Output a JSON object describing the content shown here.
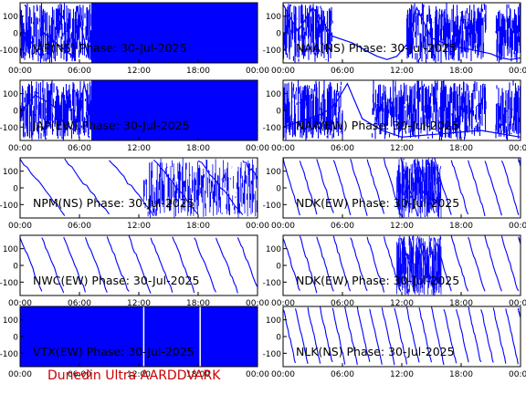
{
  "footer": "Dunedin Ultra AARDDVARK",
  "colors": {
    "trace": "#0000ff",
    "axis": "#000000",
    "footer": "#cc0000"
  },
  "chart_data": [
    {
      "type": "line",
      "title": "JAP(NS) Phase: 30-Jul-2025",
      "ylim": [
        -180,
        180
      ],
      "yticks": [
        100,
        0,
        -100
      ],
      "xticks": [
        "00:00",
        "06:00",
        "12:00",
        "18:00",
        "00:00"
      ],
      "xlim": [
        0,
        24
      ],
      "pattern": "dense",
      "x": [
        0,
        0.3,
        0.5,
        2.2,
        2.4,
        5.5,
        5.7,
        6.9,
        7.1,
        24
      ],
      "y": [
        160,
        -150,
        0,
        -150,
        0,
        -150,
        160,
        -150,
        0,
        0
      ]
    },
    {
      "type": "line",
      "title": "NAA(NS) Phase: 30-Jul-2025",
      "ylim": [
        -180,
        180
      ],
      "yticks": [
        100,
        0,
        -100
      ],
      "xticks": [
        "00:00",
        "06:00",
        "12:00",
        "18:00",
        "00:00"
      ],
      "xlim": [
        0,
        24
      ],
      "pattern": "dense-curve",
      "x": [
        0,
        1.5,
        3,
        5,
        7,
        8.5,
        9.5,
        10.5,
        11.5,
        12.5,
        13.5,
        15,
        17,
        19,
        21,
        22,
        23,
        24
      ],
      "y": [
        170,
        10,
        150,
        -20,
        -60,
        -110,
        -140,
        -160,
        -140,
        -70,
        150,
        -30,
        -80,
        -100,
        -125,
        -150,
        -160,
        -150
      ]
    },
    {
      "type": "line",
      "title": "JAP(EW) Phase: 30-Jul-2025",
      "ylim": [
        -180,
        180
      ],
      "yticks": [
        100,
        0,
        -100
      ],
      "xticks": [
        "00:00",
        "06:00",
        "12:00",
        "18:00",
        "00:00"
      ],
      "xlim": [
        0,
        24
      ],
      "pattern": "dense",
      "x": [
        0,
        0.5,
        1.5,
        2.5,
        3.5,
        4.5,
        5.5,
        6.5,
        7.5,
        24
      ],
      "y": [
        -60,
        20,
        90,
        60,
        20,
        -80,
        -120,
        160,
        -150,
        0
      ]
    },
    {
      "type": "line",
      "title": "NAA(EW) Phase: 30-Jul-2025",
      "ylim": [
        -180,
        180
      ],
      "yticks": [
        100,
        0,
        -100
      ],
      "xticks": [
        "00:00",
        "06:00",
        "12:00",
        "18:00",
        "00:00"
      ],
      "xlim": [
        0,
        24
      ],
      "pattern": "dense-curve",
      "x": [
        0,
        2,
        4,
        5.2,
        6.5,
        8,
        10,
        12,
        14,
        16,
        18,
        20,
        22,
        24
      ],
      "y": [
        -100,
        -60,
        -20,
        30,
        160,
        -50,
        -120,
        -160,
        -150,
        -140,
        -130,
        -120,
        -140,
        -160
      ]
    },
    {
      "type": "line",
      "title": "NPM(NS) Phase: 30-Jul-2025",
      "ylim": [
        -180,
        180
      ],
      "yticks": [
        100,
        0,
        -100
      ],
      "xticks": [
        "00:00",
        "06:00",
        "12:00",
        "18:00",
        "00:00"
      ],
      "xlim": [
        0,
        24
      ],
      "pattern": "sawtooth",
      "period": 4.5,
      "x": [
        0,
        4.3,
        4.5,
        6,
        8,
        10,
        12.5,
        14,
        15,
        16,
        18,
        20,
        22,
        24
      ],
      "y": [
        170,
        -160,
        160,
        110,
        70,
        20,
        -30,
        40,
        0,
        80,
        -60,
        40,
        -100,
        20
      ]
    },
    {
      "type": "line",
      "title": "NDK(EW) Phase: 30-Jul-2025",
      "ylim": [
        -180,
        180
      ],
      "yticks": [
        100,
        0,
        -100
      ],
      "xticks": [
        "00:00",
        "06:00",
        "12:00",
        "18:00",
        "00:00"
      ],
      "xlim": [
        0,
        24
      ],
      "pattern": "sawtooth",
      "period": 1.7,
      "x": [
        0,
        1.7,
        3.4,
        5.1,
        6.8,
        8.5,
        10.2,
        11.9,
        13.6,
        15.3,
        17,
        18.7,
        20.4,
        22.1,
        24
      ],
      "y": [
        160,
        -150,
        160,
        -150,
        160,
        -150,
        160,
        -150,
        160,
        -150,
        160,
        -150,
        160,
        -150,
        160
      ]
    },
    {
      "type": "line",
      "title": "NWC(EW) Phase: 30-Jul-2025",
      "ylim": [
        -180,
        180
      ],
      "yticks": [
        100,
        0,
        -100
      ],
      "xticks": [
        "00:00",
        "06:00",
        "12:00",
        "18:00",
        "00:00"
      ],
      "xlim": [
        0,
        24
      ],
      "pattern": "sawtooth",
      "period": 2.2,
      "x": [
        0,
        2.2,
        4.4,
        6.6,
        8.8,
        11,
        13.2,
        15.4,
        17.6,
        19.8,
        21.6,
        22.5,
        24
      ],
      "y": [
        170,
        -150,
        160,
        -150,
        160,
        -150,
        160,
        -150,
        160,
        -150,
        130,
        160,
        0
      ]
    },
    {
      "type": "line",
      "title": "NDK(EW) Phase: 30-Jul-2025",
      "ylim": [
        -180,
        180
      ],
      "yticks": [
        100,
        0,
        -100
      ],
      "xticks": [
        "00:00",
        "06:00",
        "12:00",
        "18:00",
        "00:00"
      ],
      "xlim": [
        0,
        24
      ],
      "pattern": "sawtooth",
      "period": 1.7,
      "x": [
        0,
        1.7,
        3.4,
        5.1,
        6.8,
        8.5,
        10.2,
        11.9,
        13.6,
        15.3,
        17,
        18.7,
        20.4,
        22.1,
        24
      ],
      "y": [
        160,
        -150,
        160,
        -150,
        160,
        -150,
        160,
        -150,
        160,
        -150,
        160,
        -150,
        160,
        -150,
        160
      ]
    },
    {
      "type": "line",
      "title": "VTX(EW) Phase: 30-Jul-2025",
      "ylim": [
        -180,
        180
      ],
      "yticks": [
        100,
        0,
        -100
      ],
      "xticks": [
        "00:00",
        "06:00",
        "12:00",
        "18:00",
        "00:00"
      ],
      "xlim": [
        0,
        24
      ],
      "pattern": "solid-fill",
      "x": [
        0,
        24
      ],
      "y": [
        -180,
        180
      ]
    },
    {
      "type": "line",
      "title": "NLK(NS) Phase: 30-Jul-2025",
      "ylim": [
        -180,
        180
      ],
      "yticks": [
        100,
        0,
        -100
      ],
      "xticks": [
        "00:00",
        "06:00",
        "12:00",
        "18:00",
        "00:00"
      ],
      "xlim": [
        0,
        24
      ],
      "pattern": "sawtooth",
      "period": 1.25,
      "x": [
        0,
        1.25,
        2.5,
        3.75,
        5,
        6.25,
        7.5,
        8.75,
        10,
        11.25,
        12.5,
        13.75,
        15,
        16.25,
        17.5,
        18.75,
        20,
        21.25,
        22.5,
        24
      ],
      "y": [
        160,
        -150,
        160,
        -150,
        160,
        -150,
        160,
        -150,
        160,
        -150,
        160,
        -150,
        160,
        -150,
        160,
        -150,
        160,
        -150,
        160,
        -150
      ]
    }
  ]
}
